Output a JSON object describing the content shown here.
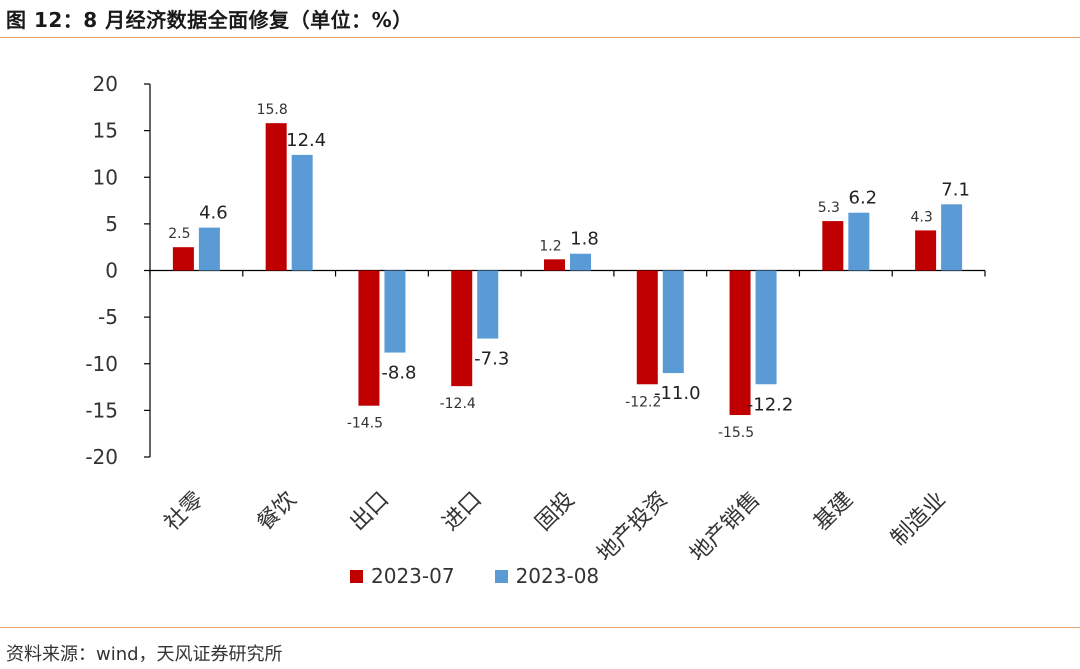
{
  "title": "图 12：8 月经济数据全面修复（单位：%）",
  "source": "资料来源：wind，天风证券研究所",
  "colors": {
    "series1": "#c00000",
    "series2": "#5b9bd5",
    "rule": "#e6a36b"
  },
  "chart_data": {
    "type": "bar",
    "categories": [
      "社零",
      "餐饮",
      "出口",
      "进口",
      "固投",
      "地产投资",
      "地产销售",
      "基建",
      "制造业"
    ],
    "series": [
      {
        "name": "2023-07",
        "values": [
          2.5,
          15.8,
          -14.5,
          -12.4,
          1.2,
          -12.2,
          -15.5,
          5.3,
          4.3
        ]
      },
      {
        "name": "2023-08",
        "values": [
          4.6,
          12.4,
          -8.8,
          -7.3,
          1.8,
          -11.0,
          -12.2,
          6.2,
          7.1
        ]
      }
    ],
    "y_ticks": [
      "20",
      "15",
      "10",
      "5",
      "0",
      "-5",
      "-10",
      "-15",
      "-20"
    ],
    "ylim": [
      -20,
      20
    ],
    "grid": false,
    "legend_position": "bottom"
  }
}
